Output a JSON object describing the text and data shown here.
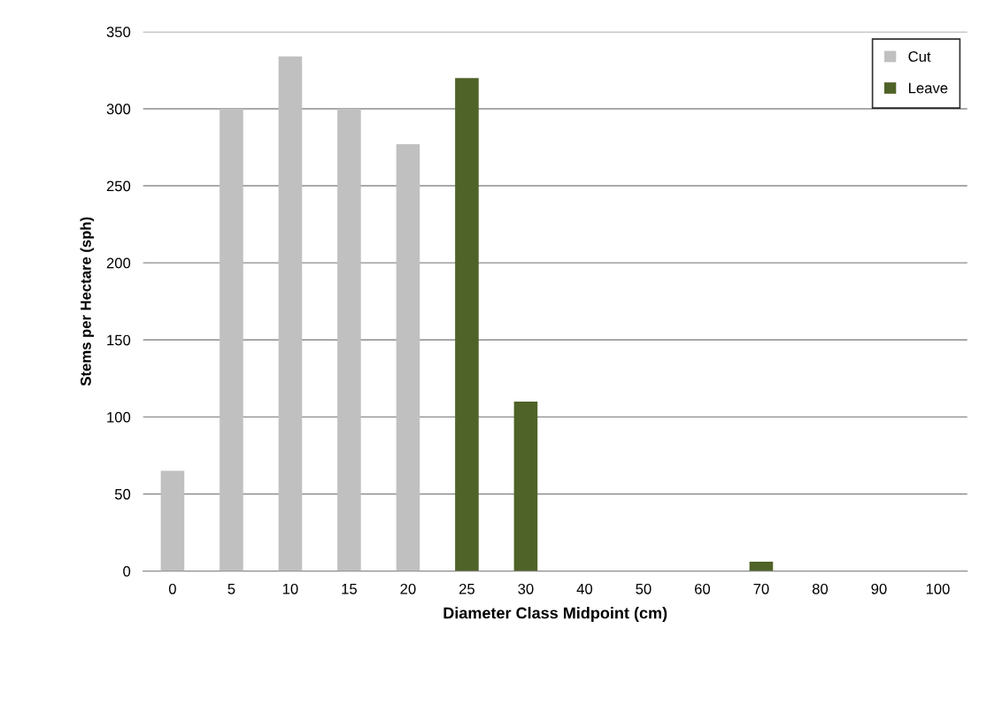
{
  "chart_data": {
    "type": "bar",
    "xlabel": "Diameter Class Midpoint (cm)",
    "ylabel": "Stems per Hectare (sph)",
    "categories": [
      "0",
      "5",
      "10",
      "15",
      "20",
      "25",
      "30",
      "40",
      "50",
      "60",
      "70",
      "80",
      "90",
      "100"
    ],
    "legend": "top right",
    "series": [
      {
        "name": "Cut",
        "color": "#c0c0c0",
        "values": [
          65,
          300,
          334,
          300,
          277,
          null,
          null,
          null,
          null,
          null,
          null,
          null,
          null,
          null
        ]
      },
      {
        "name": "Leave",
        "color": "#4f6228",
        "values": [
          null,
          null,
          null,
          null,
          null,
          320,
          110,
          null,
          null,
          null,
          6,
          null,
          null,
          null
        ]
      }
    ],
    "ylim": [
      0,
      350
    ],
    "yticks": [
      0,
      50,
      100,
      150,
      200,
      250,
      300,
      350
    ],
    "grid": "y"
  }
}
